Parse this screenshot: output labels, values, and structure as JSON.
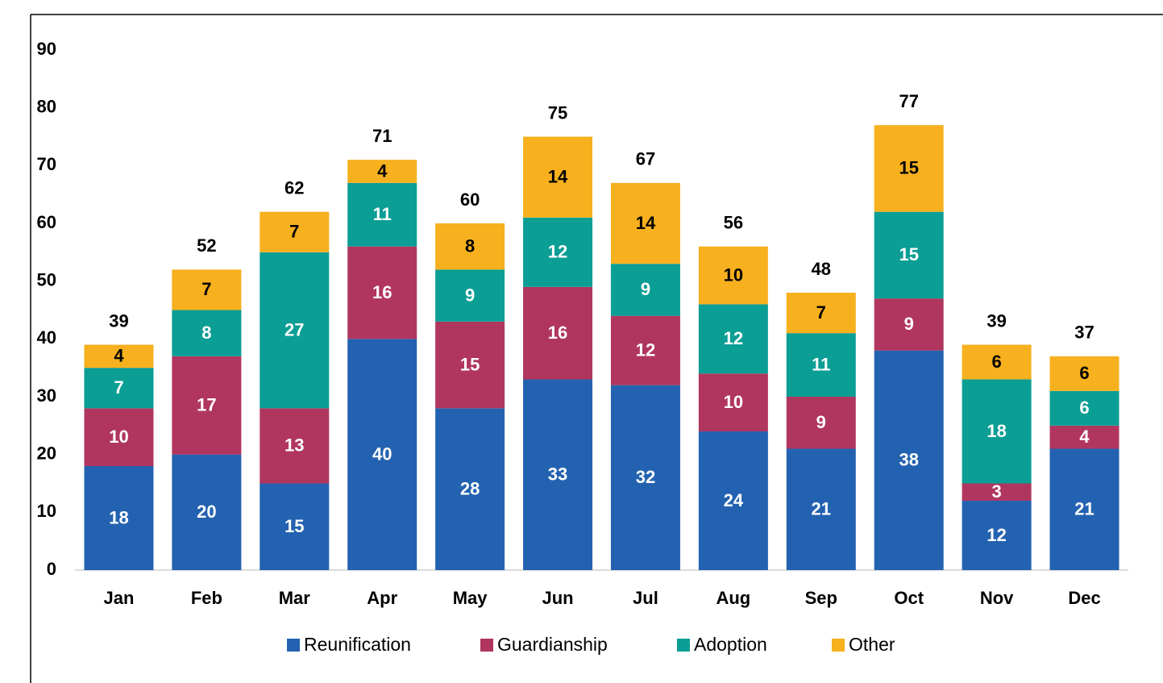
{
  "chart_data": {
    "type": "stacked_bar",
    "categories": [
      "Jan",
      "Feb",
      "Mar",
      "Apr",
      "May",
      "Jun",
      "Jul",
      "Aug",
      "Sep",
      "Oct",
      "Nov",
      "Dec"
    ],
    "series": [
      {
        "name": "Reunification",
        "color": "#2362b0",
        "values": [
          18,
          20,
          15,
          40,
          28,
          33,
          32,
          24,
          21,
          38,
          12,
          21
        ]
      },
      {
        "name": "Guardianship",
        "color": "#b0365f",
        "values": [
          10,
          17,
          13,
          16,
          15,
          16,
          12,
          10,
          9,
          9,
          3,
          4
        ]
      },
      {
        "name": "Adoption",
        "color": "#0b9e94",
        "values": [
          7,
          8,
          27,
          11,
          9,
          12,
          9,
          12,
          11,
          15,
          18,
          6
        ]
      },
      {
        "name": "Other",
        "color": "#f7b01e",
        "values": [
          4,
          7,
          7,
          4,
          8,
          14,
          14,
          10,
          7,
          15,
          6,
          6
        ]
      }
    ],
    "totals": [
      39,
      52,
      62,
      71,
      60,
      75,
      67,
      56,
      48,
      77,
      39,
      37
    ],
    "ylim": [
      0,
      90
    ],
    "yticks": [
      0,
      10,
      20,
      30,
      40,
      50,
      60,
      70,
      80,
      90
    ],
    "grid": false,
    "legend": "bottom"
  }
}
